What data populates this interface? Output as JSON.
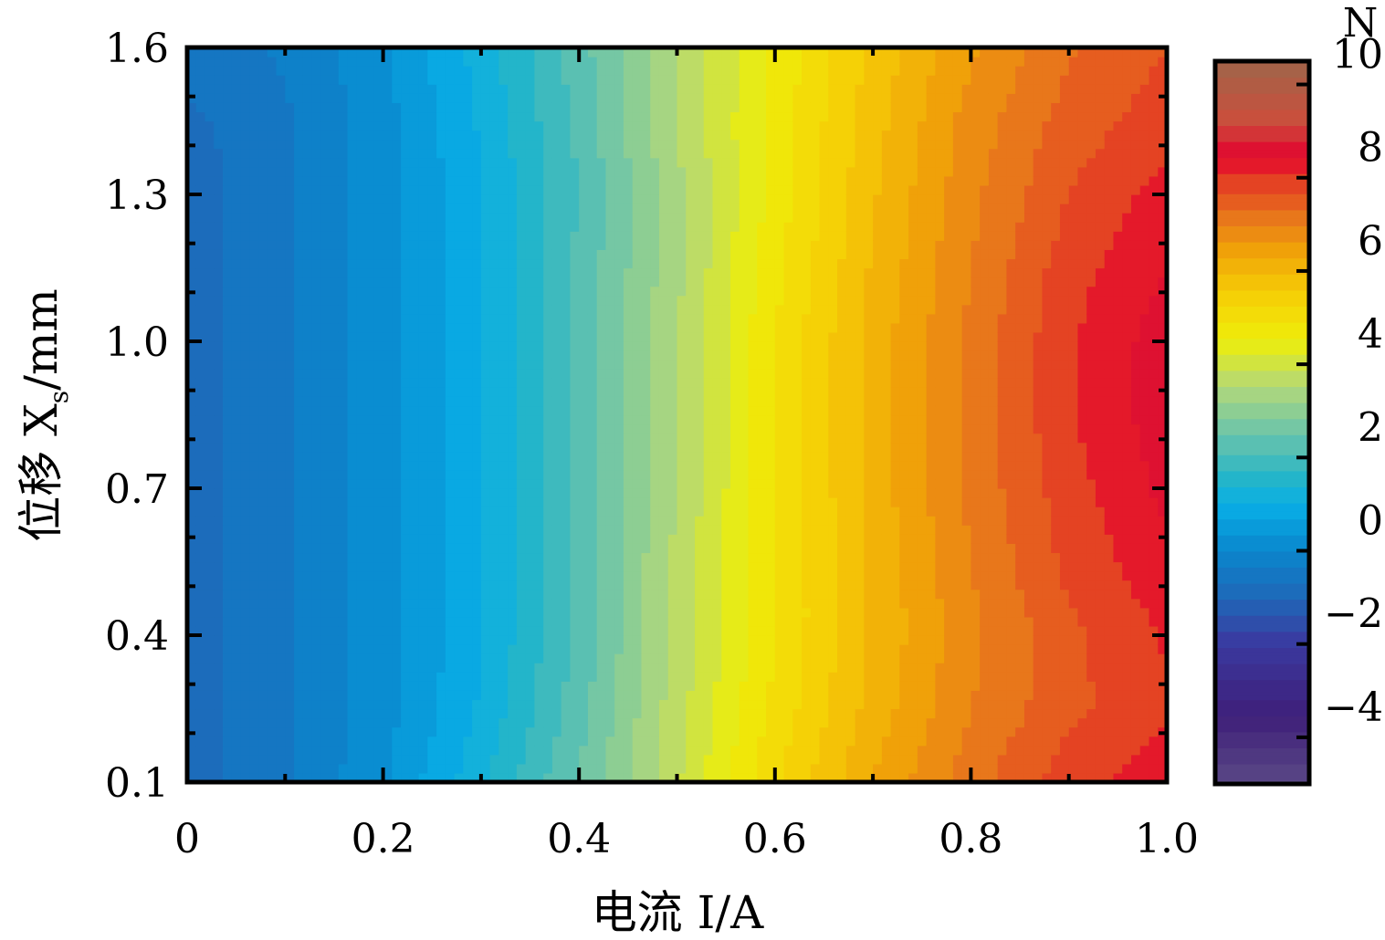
{
  "chart_data": {
    "type": "heatmap",
    "title": "",
    "xlabel": "电流 I/A",
    "ylabel_prefix": "位移 X",
    "ylabel_subscript": "s",
    "ylabel_suffix": "/mm",
    "xlim": [
      0,
      1.0
    ],
    "ylim": [
      0.1,
      1.6
    ],
    "x_ticks": [
      {
        "value": 0,
        "label": "0"
      },
      {
        "value": 0.2,
        "label": "0.2"
      },
      {
        "value": 0.4,
        "label": "0.4"
      },
      {
        "value": 0.6,
        "label": "0.6"
      },
      {
        "value": 0.8,
        "label": "0.8"
      },
      {
        "value": 1.0,
        "label": "1.0"
      }
    ],
    "y_ticks": [
      {
        "value": 0.1,
        "label": "0.1"
      },
      {
        "value": 0.4,
        "label": "0.4"
      },
      {
        "value": 0.7,
        "label": "0.7"
      },
      {
        "value": 1.0,
        "label": "1.0"
      },
      {
        "value": 1.3,
        "label": "1.3"
      },
      {
        "value": 1.6,
        "label": "1.6"
      }
    ],
    "x": [
      0,
      0.1,
      0.2,
      0.3,
      0.4,
      0.5,
      0.6,
      0.7,
      0.8,
      0.9,
      1.0
    ],
    "y": [
      0.1,
      0.25,
      0.4,
      0.55,
      0.7,
      0.85,
      1.0,
      1.15,
      1.3,
      1.45,
      1.6
    ],
    "z": [
      [
        -0.9,
        -0.4,
        0.3,
        1.3,
        2.5,
        3.8,
        5.2,
        6.3,
        7.2,
        7.9,
        8.3
      ],
      [
        -0.9,
        -0.4,
        0.2,
        1.1,
        2.3,
        3.7,
        5.0,
        6.1,
        7.0,
        7.6,
        8.0
      ],
      [
        -0.9,
        -0.4,
        0.2,
        1.0,
        2.2,
        3.6,
        4.9,
        6.0,
        6.9,
        7.6,
        8.1
      ],
      [
        -0.9,
        -0.4,
        0.2,
        1.0,
        2.2,
        3.6,
        4.9,
        6.0,
        7.0,
        7.8,
        8.3
      ],
      [
        -0.9,
        -0.4,
        0.2,
        1.0,
        2.2,
        3.5,
        4.9,
        6.1,
        7.1,
        7.9,
        8.5
      ],
      [
        -0.9,
        -0.4,
        0.2,
        1.0,
        2.2,
        3.5,
        4.9,
        6.1,
        7.1,
        8.0,
        8.6
      ],
      [
        -0.9,
        -0.4,
        0.2,
        1.0,
        2.2,
        3.5,
        4.9,
        6.1,
        7.1,
        8.0,
        8.6
      ],
      [
        -0.9,
        -0.4,
        0.2,
        1.0,
        2.2,
        3.4,
        4.8,
        6.0,
        7.0,
        7.9,
        8.4
      ],
      [
        -0.9,
        -0.4,
        0.2,
        1.0,
        2.1,
        3.4,
        4.7,
        5.9,
        6.9,
        7.7,
        8.2
      ],
      [
        -0.8,
        -0.4,
        0.2,
        1.1,
        2.2,
        3.5,
        4.7,
        5.8,
        6.8,
        7.5,
        7.9
      ],
      [
        -0.5,
        -0.3,
        0.3,
        1.2,
        2.3,
        3.5,
        4.6,
        5.7,
        6.6,
        7.3,
        7.7
      ]
    ],
    "colorbar": {
      "unit_label": "N",
      "range": [
        -5,
        10.5
      ],
      "ticks": [
        {
          "value": 10,
          "label": "10"
        },
        {
          "value": 8,
          "label": "8"
        },
        {
          "value": 6,
          "label": "6"
        },
        {
          "value": 4,
          "label": "4"
        },
        {
          "value": 2,
          "label": "2"
        },
        {
          "value": 0,
          "label": "0"
        },
        {
          "value": -2,
          "label": "−2"
        },
        {
          "value": -4,
          "label": "−4"
        }
      ],
      "color_stops": [
        {
          "value": -5,
          "color": "#5b4a86"
        },
        {
          "value": -3.5,
          "color": "#3f1f7a"
        },
        {
          "value": -2,
          "color": "#3a3aa0"
        },
        {
          "value": -1,
          "color": "#1f68b8"
        },
        {
          "value": 0,
          "color": "#0a86cc"
        },
        {
          "value": 1,
          "color": "#09aee6"
        },
        {
          "value": 1.6,
          "color": "#24b5c9"
        },
        {
          "value": 2.5,
          "color": "#6cc4aa"
        },
        {
          "value": 3.5,
          "color": "#b2d87a"
        },
        {
          "value": 4.5,
          "color": "#eeee0a"
        },
        {
          "value": 5.5,
          "color": "#f6cf06"
        },
        {
          "value": 6.5,
          "color": "#f0a009"
        },
        {
          "value": 7.2,
          "color": "#e8751c"
        },
        {
          "value": 8,
          "color": "#e33a24"
        },
        {
          "value": 8.4,
          "color": "#e4002e"
        },
        {
          "value": 9.2,
          "color": "#ca4f3c"
        },
        {
          "value": 10.5,
          "color": "#a0654a"
        }
      ]
    }
  }
}
